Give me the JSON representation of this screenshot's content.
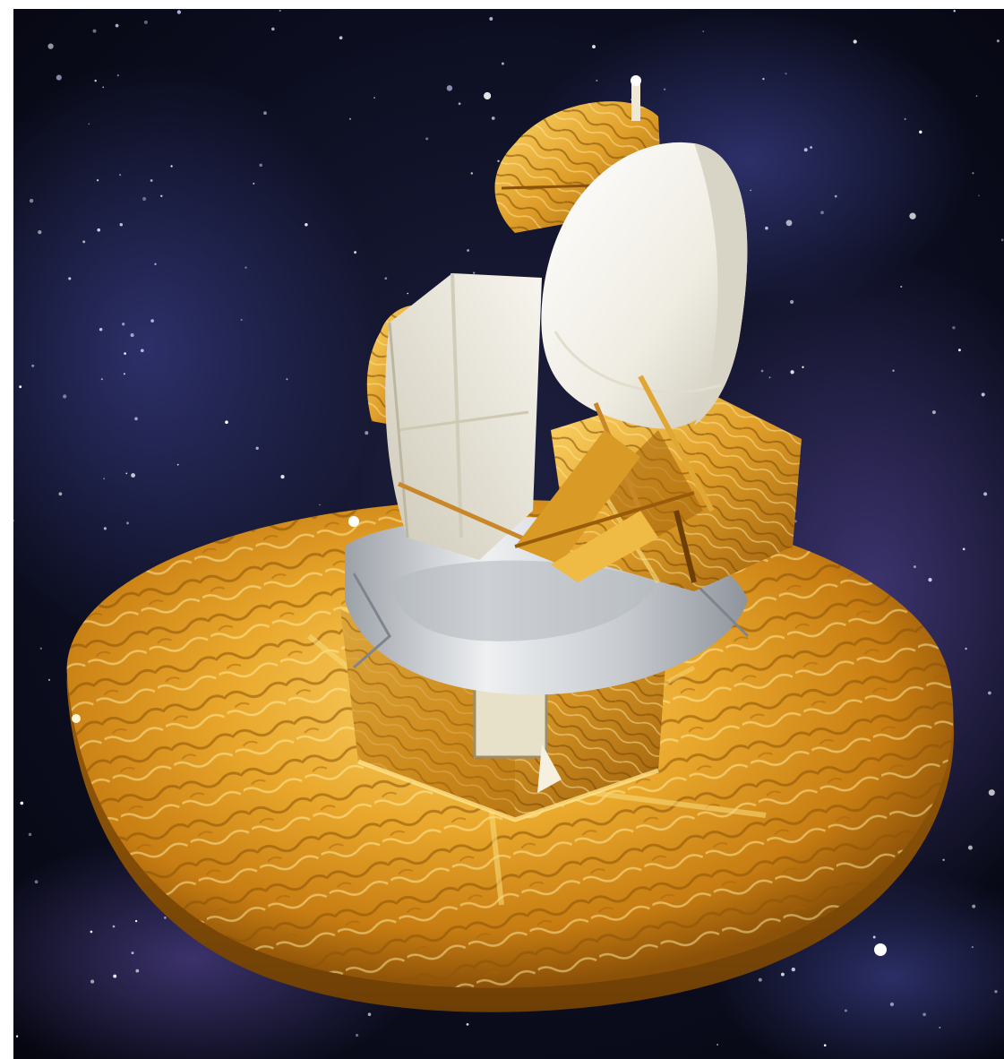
{
  "image": {
    "subject": "satellite-illustration",
    "colors": {
      "space_dark": "#070915",
      "nebula_blue": "#34387a",
      "nebula_purple": "#4b3f86",
      "gold_light": "#f6c44a",
      "gold_mid": "#d8921c",
      "gold_dark": "#8b5108",
      "dish_white": "#f3f1e8",
      "dish_shade": "#c9c5b6",
      "silver": "#d9dce0",
      "silver_dark": "#8f949c"
    }
  }
}
